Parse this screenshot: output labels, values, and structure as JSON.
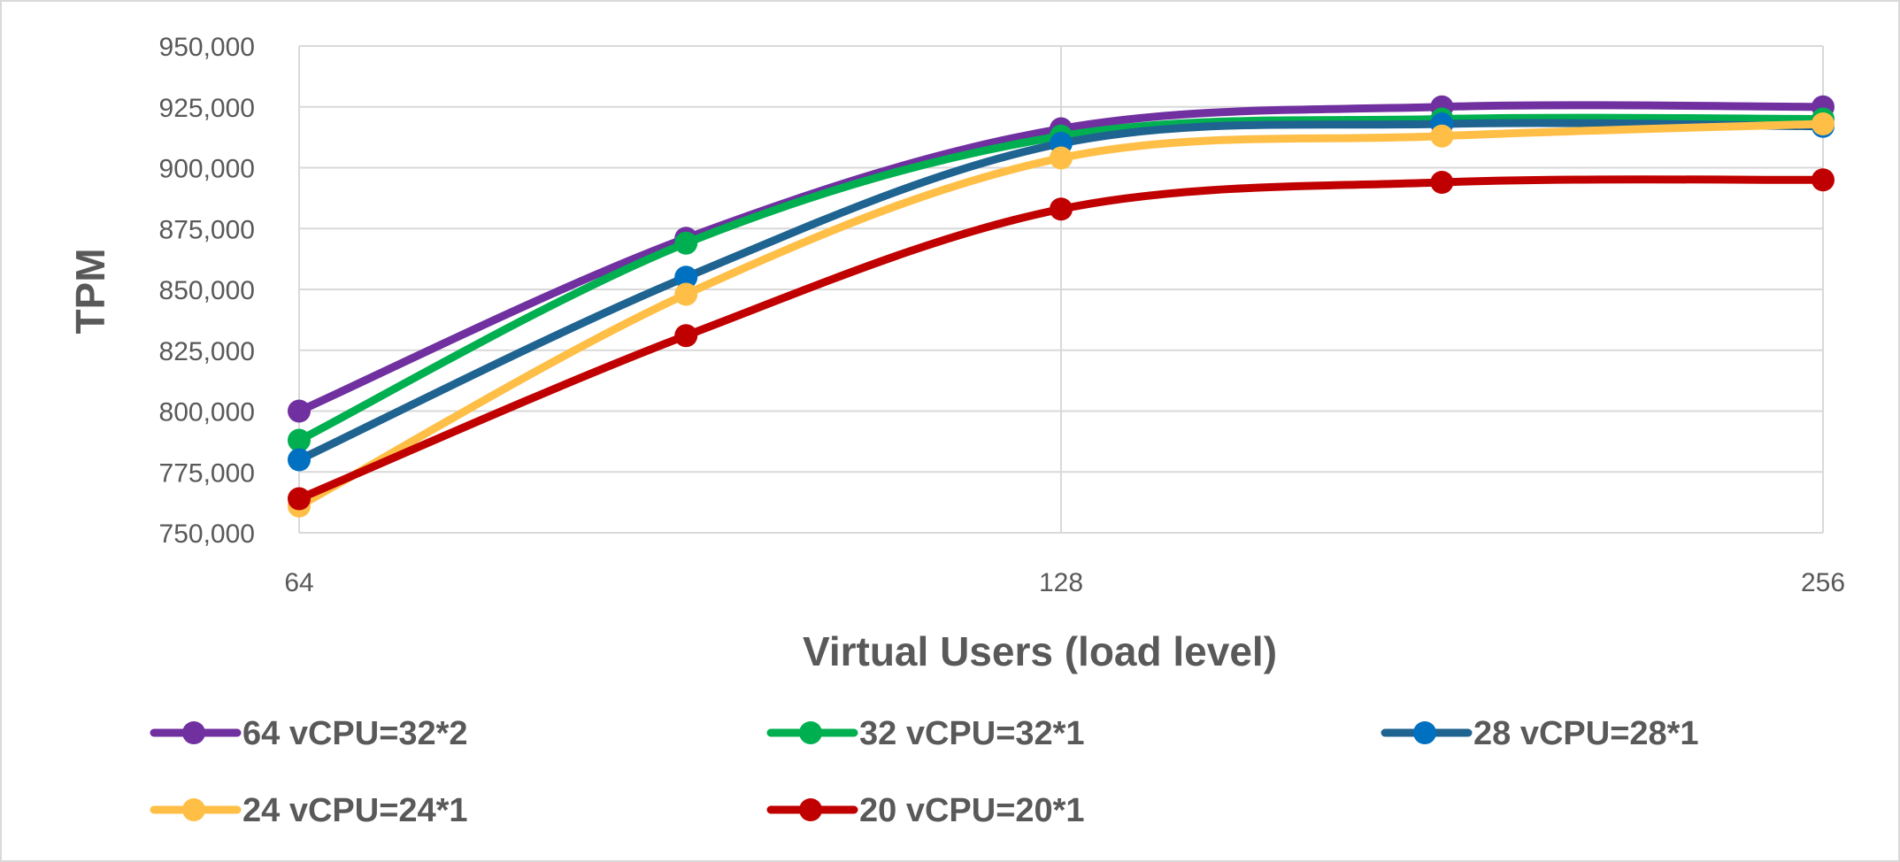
{
  "chart_data": {
    "type": "line",
    "title": "",
    "xlabel": "Virtual Users (load level)",
    "ylabel": "TPM",
    "x_scale": "log2",
    "xlim": [
      64,
      256
    ],
    "ylim": [
      750000,
      950000
    ],
    "x_ticks": [
      64,
      128,
      256
    ],
    "x_tick_labels": [
      "64",
      "128",
      "256"
    ],
    "y_ticks": [
      750000,
      775000,
      800000,
      825000,
      850000,
      875000,
      900000,
      925000,
      950000
    ],
    "y_tick_labels": [
      "750,000",
      "775,000",
      "800,000",
      "825,000",
      "850,000",
      "875,000",
      "900,000",
      "925,000",
      "950,000"
    ],
    "grid": true,
    "smooth": true,
    "legend_position": "bottom",
    "x": [
      64,
      91,
      128,
      181,
      256
    ],
    "series": [
      {
        "name": "64 vCPU=32*2",
        "color": "#7030A0",
        "marker_color": "#7030A0",
        "values": [
          800000,
          871000,
          916000,
          925000,
          925000
        ]
      },
      {
        "name": "32 vCPU=32*1",
        "color": "#00B050",
        "marker_color": "#00B050",
        "values": [
          788000,
          869000,
          913000,
          920000,
          920000
        ]
      },
      {
        "name": "28 vCPU=28*1",
        "color": "#1F6391",
        "marker_color": "#0070C0",
        "values": [
          780000,
          855000,
          910000,
          918000,
          917000
        ]
      },
      {
        "name": "24 vCPU=24*1",
        "color": "#FFBF47",
        "marker_color": "#FFBF47",
        "values": [
          761000,
          848000,
          904000,
          913000,
          918000
        ]
      },
      {
        "name": "20 vCPU=20*1",
        "color": "#C00000",
        "marker_color": "#C00000",
        "values": [
          764000,
          831000,
          883000,
          894000,
          895000
        ]
      }
    ]
  }
}
